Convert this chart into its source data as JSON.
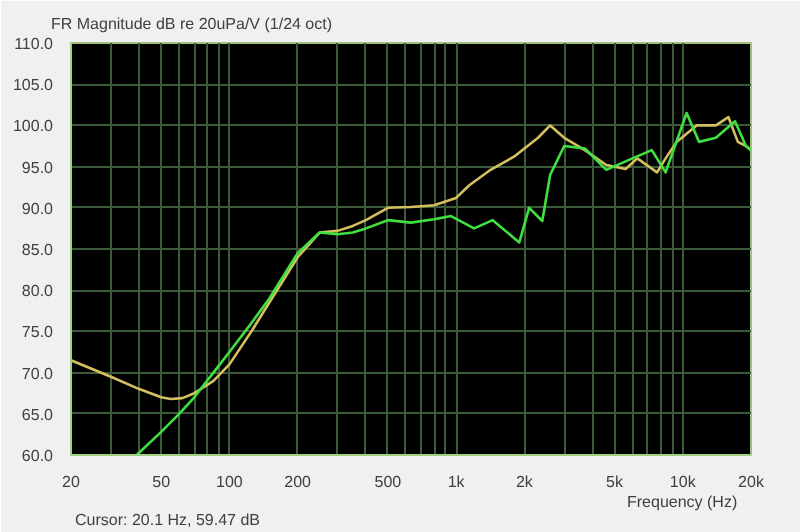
{
  "chart_data": {
    "type": "line",
    "title": "FR Magnitude dB re 20uPa/V (1/24 oct)",
    "xlabel": "Frequency (Hz)",
    "annotations": [
      "Cursor: 20.1 Hz, 59.47 dB"
    ],
    "log": "x",
    "grid": true,
    "line_style": "solid",
    "marker": "none",
    "xlim": [
      20,
      20000
    ],
    "ylim": [
      60,
      110
    ],
    "xticks": [
      20,
      {
        "value": 30,
        "label": null
      },
      {
        "value": 40,
        "label": null
      },
      50,
      {
        "value": 60,
        "label": null
      },
      {
        "value": 70,
        "label": null
      },
      {
        "value": 80,
        "label": null
      },
      {
        "value": 90,
        "label": null
      },
      100,
      200,
      {
        "value": 300,
        "label": null
      },
      {
        "value": 400,
        "label": null
      },
      500,
      {
        "value": 600,
        "label": null
      },
      {
        "value": 700,
        "label": null
      },
      {
        "value": 800,
        "label": null
      },
      {
        "value": 900,
        "label": null
      },
      {
        "value": 1000,
        "label": "1k"
      },
      {
        "value": 2000,
        "label": "2k"
      },
      {
        "value": 3000,
        "label": null
      },
      {
        "value": 4000,
        "label": null
      },
      {
        "value": 5000,
        "label": "5k"
      },
      {
        "value": 6000,
        "label": null
      },
      {
        "value": 7000,
        "label": null
      },
      {
        "value": 8000,
        "label": null
      },
      {
        "value": 9000,
        "label": null
      },
      {
        "value": 10000,
        "label": "10k"
      },
      {
        "value": 20000,
        "label": "20k"
      }
    ],
    "yticks": [
      {
        "value": 60,
        "label": "60.0"
      },
      {
        "value": 65,
        "label": "65.0"
      },
      {
        "value": 70,
        "label": "70.0"
      },
      {
        "value": 75,
        "label": "75.0"
      },
      {
        "value": 80,
        "label": "80.0"
      },
      {
        "value": 85,
        "label": "85.0"
      },
      {
        "value": 90,
        "label": "90.0"
      },
      {
        "value": 95,
        "label": "95.0"
      },
      {
        "value": 100,
        "label": "100.0"
      },
      {
        "value": 105,
        "label": "105.0"
      },
      {
        "value": 110,
        "label": "110.0"
      }
    ],
    "series": [
      {
        "color": "#d4c060",
        "x": [
          20,
          30,
          40,
          50,
          55,
          62,
          70,
          85,
          100,
          125,
          150,
          200,
          250,
          300,
          350,
          400,
          500,
          632,
          800,
          1000,
          1140,
          1400,
          1800,
          2300,
          2600,
          3000,
          3700,
          4600,
          5600,
          6300,
          7700,
          8400,
          9400,
          11500,
          14000,
          15900,
          17500,
          19000,
          20000
        ],
        "values": [
          71.5,
          69.5,
          68,
          67,
          66.8,
          66.9,
          67.5,
          69,
          71,
          75,
          78.5,
          84,
          87,
          87.2,
          87.8,
          88.5,
          90,
          90.1,
          90.3,
          91.2,
          92.7,
          94.5,
          96.2,
          98.5,
          100,
          98.5,
          97,
          95.2,
          94.7,
          96,
          94.3,
          96,
          98,
          100,
          100,
          101,
          98,
          97.5,
          97
        ]
      },
      {
        "color": "#40e040",
        "x": [
          39,
          50,
          60,
          70,
          85,
          100,
          125,
          150,
          200,
          250,
          300,
          350,
          400,
          500,
          632,
          800,
          950,
          1200,
          1450,
          1900,
          2100,
          2400,
          2600,
          3000,
          3700,
          4600,
          6000,
          7300,
          8400,
          10400,
          11800,
          14000,
          17000,
          19000,
          20000
        ],
        "values": [
          60,
          62.8,
          65,
          67,
          70,
          72.5,
          76,
          79,
          84.5,
          87,
          86.8,
          87,
          87.5,
          88.5,
          88.2,
          88.6,
          89,
          87.5,
          88.5,
          85.8,
          90,
          88.4,
          94,
          97.5,
          97.2,
          94.6,
          96,
          97,
          94.3,
          101.5,
          98,
          98.5,
          100.5,
          97.5,
          97
        ]
      }
    ]
  }
}
